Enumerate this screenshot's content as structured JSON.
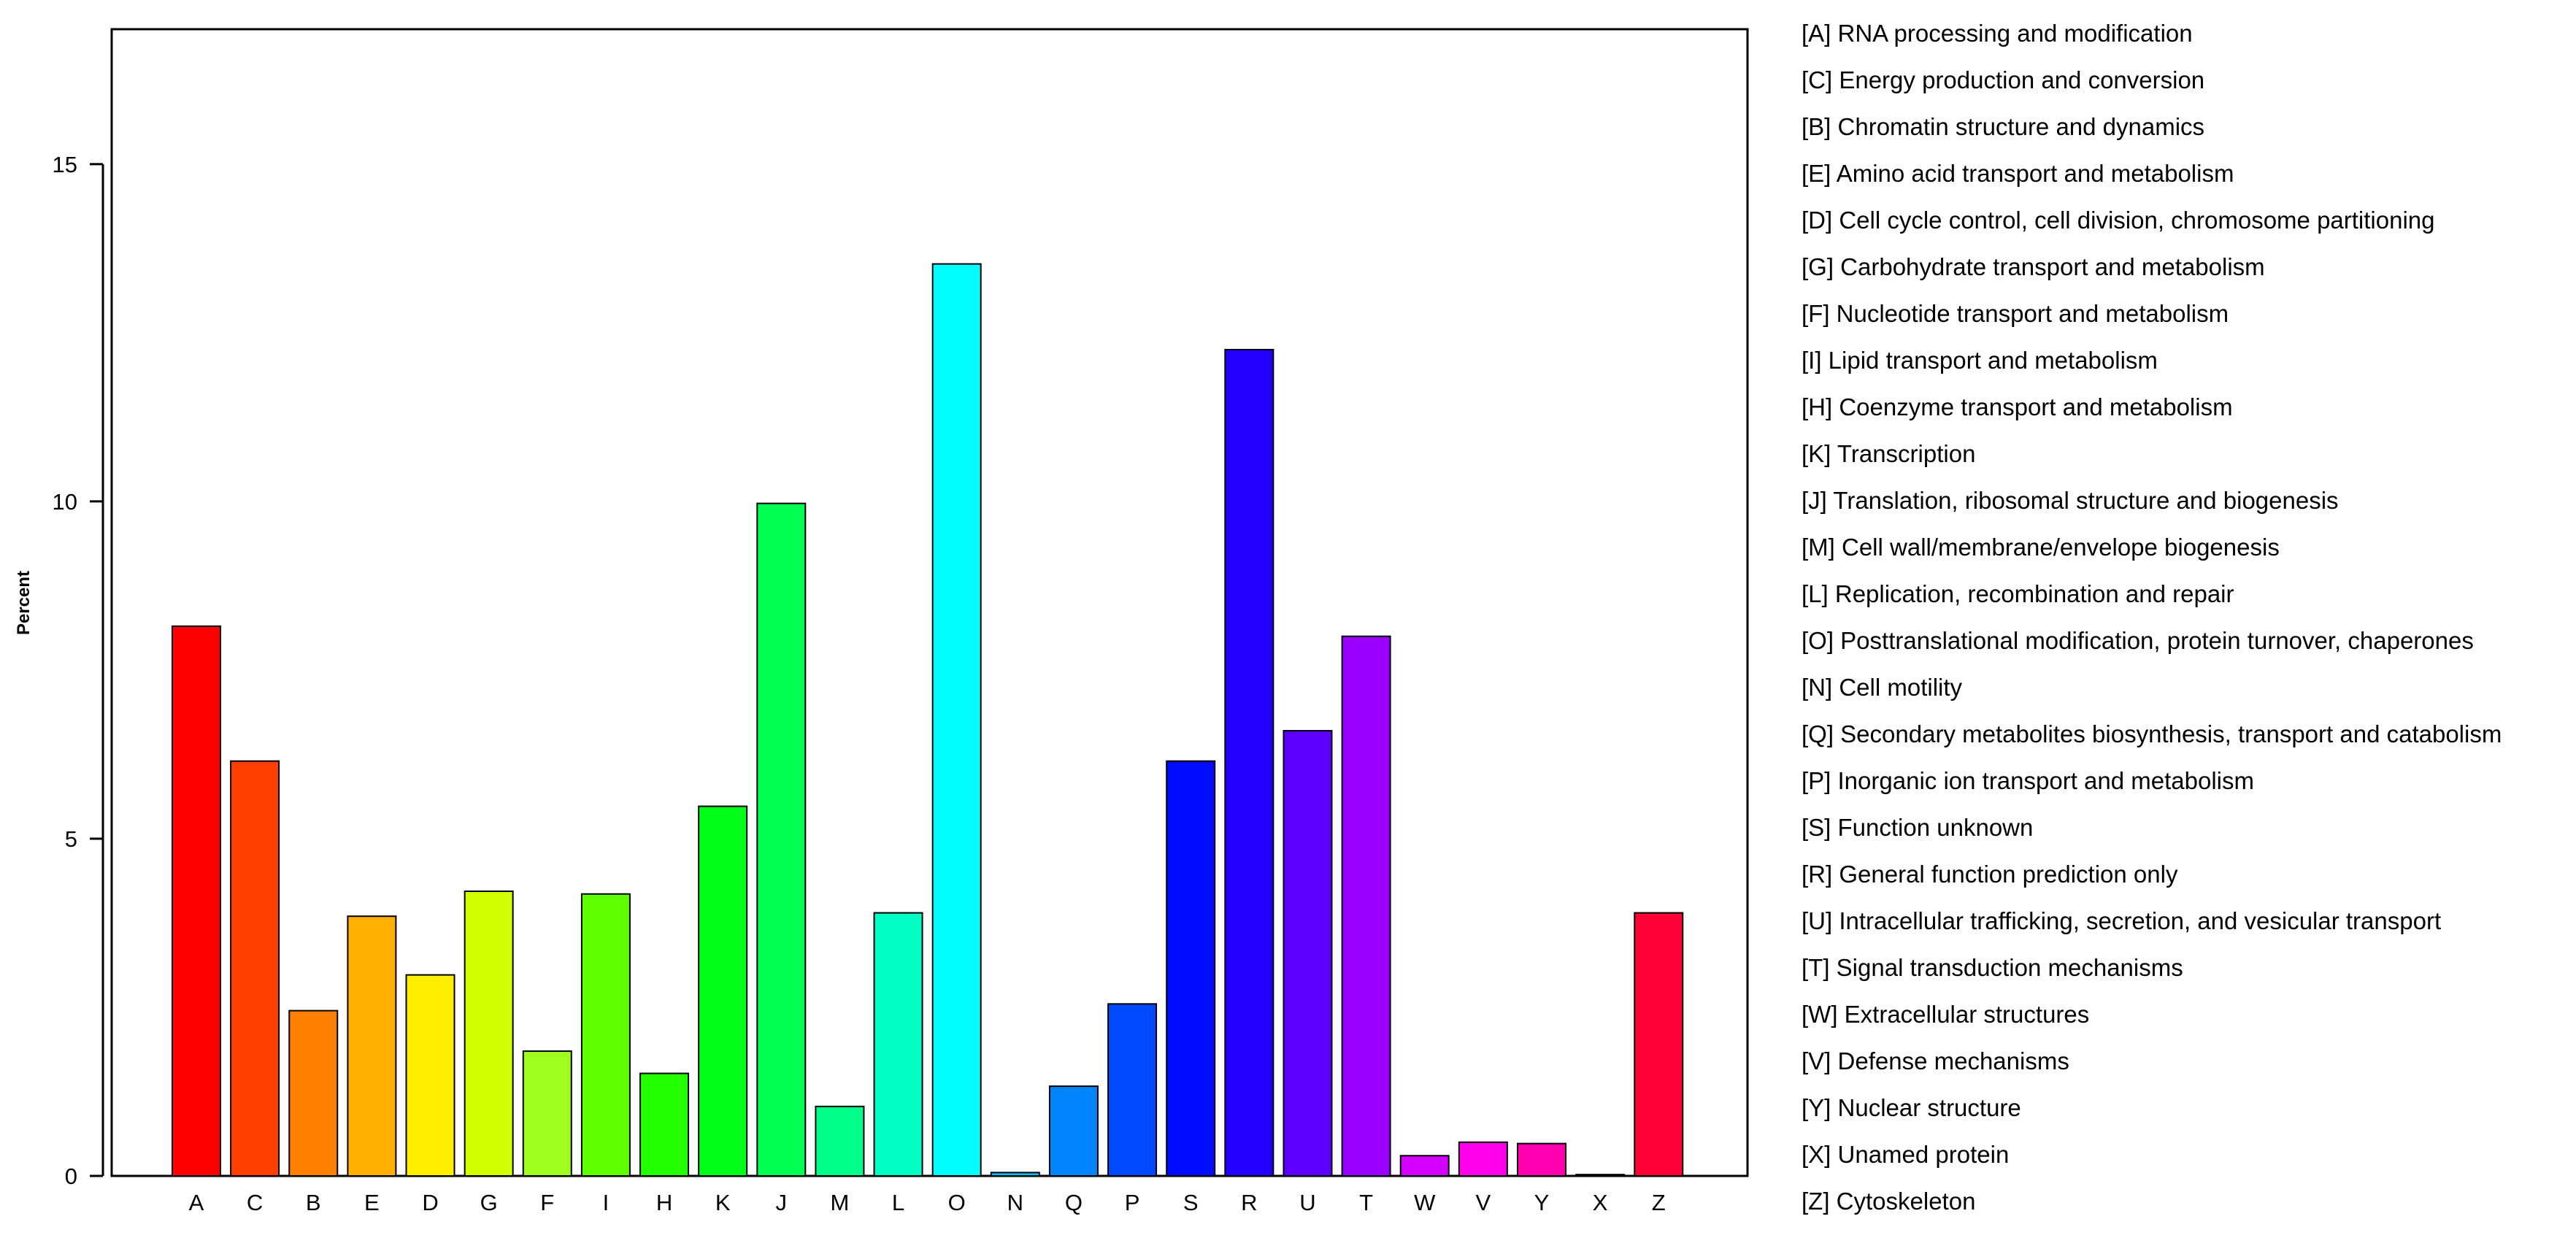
{
  "chart_data": {
    "type": "bar",
    "ylabel": "Percent",
    "ylim": [
      0,
      17
    ],
    "yticks": [
      0,
      5,
      10,
      15
    ],
    "categories": [
      "A",
      "C",
      "B",
      "E",
      "D",
      "G",
      "F",
      "I",
      "H",
      "K",
      "J",
      "M",
      "L",
      "O",
      "N",
      "Q",
      "P",
      "S",
      "R",
      "U",
      "T",
      "W",
      "V",
      "Y",
      "X",
      "Z"
    ],
    "values": [
      8.15,
      6.15,
      2.45,
      3.85,
      2.98,
      4.22,
      1.85,
      4.18,
      1.52,
      5.48,
      9.97,
      1.03,
      3.9,
      13.52,
      0.05,
      1.33,
      2.55,
      6.15,
      12.25,
      6.6,
      8.0,
      0.3,
      0.5,
      0.48,
      0.02,
      3.9
    ],
    "colors": [
      "#FF0000",
      "#FF3F00",
      "#FF7F00",
      "#FFB000",
      "#FFEE00",
      "#D4FF00",
      "#9FFF1F",
      "#5FFF00",
      "#22FF00",
      "#00FF1B",
      "#00FF52",
      "#00FF8A",
      "#00FFC4",
      "#00FFFF",
      "#00C0FF",
      "#0085FF",
      "#0049FF",
      "#000CFF",
      "#2200FF",
      "#5E00FF",
      "#9900FF",
      "#D400FF",
      "#FF00EA",
      "#FF00B0",
      "#FF0074",
      "#FF0038"
    ],
    "legend": [
      "[A] RNA processing and modification",
      "[C] Energy production and conversion",
      "[B] Chromatin structure and dynamics",
      "[E] Amino acid transport and metabolism",
      "[D] Cell cycle control, cell division, chromosome partitioning",
      "[G] Carbohydrate transport and metabolism",
      "[F] Nucleotide transport and metabolism",
      "[I] Lipid transport and metabolism",
      "[H] Coenzyme transport and metabolism",
      "[K] Transcription",
      "[J] Translation, ribosomal structure and biogenesis",
      "[M] Cell wall/membrane/envelope biogenesis",
      "[L] Replication, recombination and repair",
      "[O] Posttranslational modification, protein turnover, chaperones",
      "[N] Cell motility",
      "[Q] Secondary metabolites biosynthesis, transport and catabolism",
      "[P] Inorganic ion transport and metabolism",
      "[S] Function unknown",
      "[R] General function prediction only",
      "[U] Intracellular trafficking, secretion, and vesicular transport",
      "[T] Signal transduction mechanisms",
      "[W] Extracellular structures",
      "[V] Defense mechanisms",
      "[Y] Nuclear structure",
      "[X] Unamed protein",
      "[Z] Cytoskeleton"
    ],
    "legend_position": "right",
    "grid": false
  }
}
